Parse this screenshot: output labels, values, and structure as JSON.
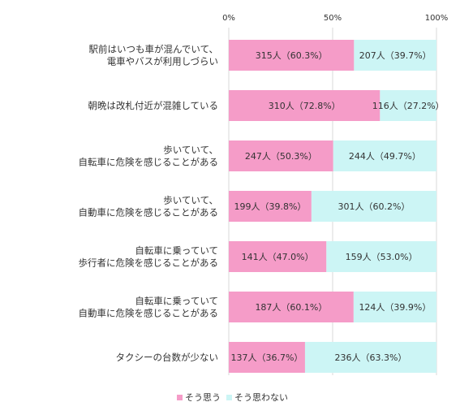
{
  "chart_data": {
    "type": "bar",
    "orientation": "horizontal",
    "stacked": "percent",
    "categories": [
      [
        "駅前はいつも車が混んでいて、",
        "電車やバスが利用しづらい"
      ],
      [
        "朝晩は改札付近が混雑している"
      ],
      [
        "歩いていて、",
        "自転車に危険を感じることがある"
      ],
      [
        "歩いていて、",
        "自動車に危険を感じることがある"
      ],
      [
        "自転車に乗っていて",
        "歩行者に危険を感じることがある"
      ],
      [
        "自転車に乗っていて",
        "自動車に危険を感じることがある"
      ],
      [
        "タクシーの台数が少ない"
      ]
    ],
    "series": [
      {
        "name": "そう思う",
        "color": "#f59cc8",
        "values": [
          60.3,
          72.8,
          50.3,
          39.8,
          47.0,
          60.1,
          36.7
        ],
        "labels": [
          "315人（60.3%）",
          "310人（72.8%）",
          "247人（50.3%）",
          "199人（39.8%）",
          "141人（47.0%）",
          "187人（60.1%）",
          "137人（36.7%）"
        ]
      },
      {
        "name": "そう思わない",
        "color": "#ccf5f5",
        "values": [
          39.7,
          27.2,
          49.7,
          60.2,
          53.0,
          39.9,
          63.3
        ],
        "labels": [
          "207人（39.7%）",
          "116人（27.2%）",
          "244人（49.7%）",
          "301人（60.2%）",
          "159人（53.0%）",
          "124人（39.9%）",
          "236人（63.3%）"
        ]
      }
    ],
    "x_ticks": [
      "0%",
      "50%",
      "100%"
    ],
    "xlim": [
      0,
      100
    ],
    "grid": true,
    "legend": "bottom-center"
  }
}
